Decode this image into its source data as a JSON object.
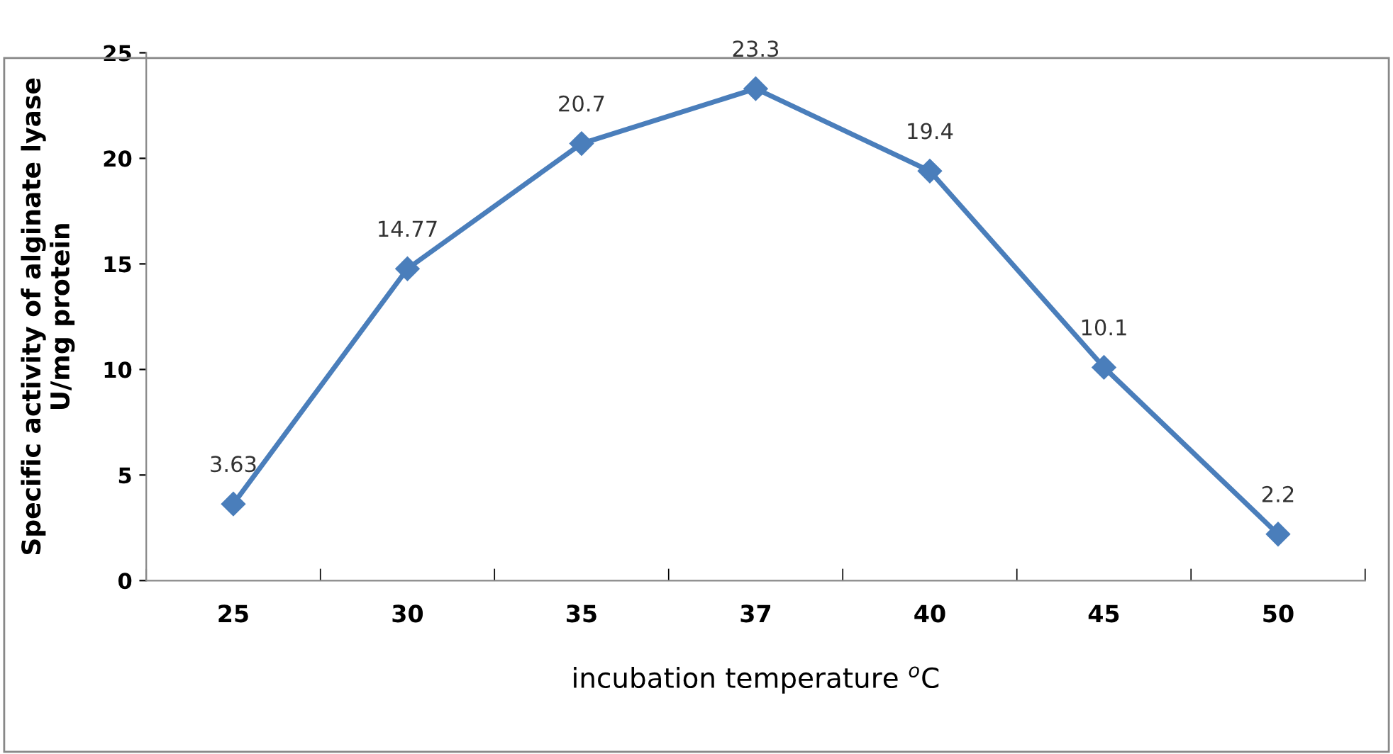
{
  "chart_data": {
    "type": "line",
    "xlabel": "incubation temperature $^{o}$C",
    "ylabel": "Specific activity of alginate lyase\nU/mg protein",
    "categories": [
      "25",
      "30",
      "35",
      "37",
      "40",
      "45",
      "50"
    ],
    "series": [
      {
        "color": "#4a7ebb",
        "values": [
          3.63,
          14.77,
          20.7,
          23.3,
          19.4,
          10.1,
          2.2
        ]
      }
    ],
    "ylim": [
      0,
      25
    ],
    "yticks": [
      0,
      5,
      10,
      15,
      20,
      25
    ],
    "marker": "diamond",
    "line_style": "solid",
    "data_labels": true,
    "grid": false,
    "legend": false
  }
}
